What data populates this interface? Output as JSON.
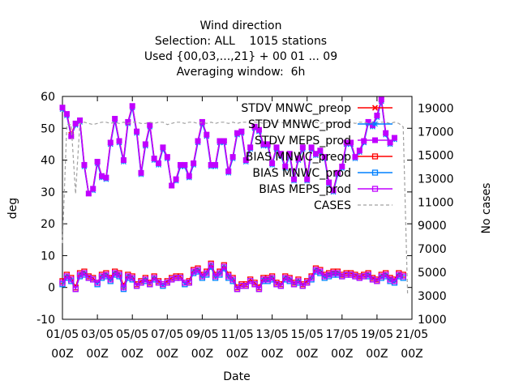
{
  "chart_data": {
    "type": "line",
    "title_lines": [
      "Wind direction",
      "Selection: ALL    1015 stations",
      "Used {00,03,...,21} + 00 01 ... 09",
      "Averaging window:  6h"
    ],
    "xlabel": "Date",
    "ylabel": "deg",
    "y2label": "No cases",
    "xlim": [
      0,
      20
    ],
    "ylim": [
      -10,
      60
    ],
    "y2lim": [
      1000,
      20000
    ],
    "x_ticks": [
      0,
      2,
      4,
      6,
      8,
      10,
      12,
      14,
      16,
      18,
      20
    ],
    "x_tick_labels": [
      [
        "01/05",
        "00Z"
      ],
      [
        "03/05",
        "00Z"
      ],
      [
        "05/05",
        "00Z"
      ],
      [
        "07/05",
        "00Z"
      ],
      [
        "09/05",
        "00Z"
      ],
      [
        "11/05",
        "00Z"
      ],
      [
        "13/05",
        "00Z"
      ],
      [
        "15/05",
        "00Z"
      ],
      [
        "17/05",
        "00Z"
      ],
      [
        "19/05",
        "00Z"
      ],
      [
        "21/05",
        "00Z"
      ]
    ],
    "y_ticks": [
      -10,
      0,
      10,
      20,
      30,
      40,
      50,
      60
    ],
    "y2_ticks": [
      1000,
      3000,
      5000,
      7000,
      9000,
      11000,
      13000,
      15000,
      17000,
      19000
    ],
    "legend_position": "top-right",
    "grid": false,
    "x": [
      0,
      0.25,
      0.5,
      0.75,
      1,
      1.25,
      1.5,
      1.75,
      2,
      2.25,
      2.5,
      2.75,
      3,
      3.25,
      3.5,
      3.75,
      4,
      4.25,
      4.5,
      4.75,
      5,
      5.25,
      5.5,
      5.75,
      6,
      6.25,
      6.5,
      6.75,
      7,
      7.25,
      7.5,
      7.75,
      8,
      8.25,
      8.5,
      8.75,
      9,
      9.25,
      9.5,
      9.75,
      10,
      10.25,
      10.5,
      10.75,
      11,
      11.25,
      11.5,
      11.75,
      12,
      12.25,
      12.5,
      12.75,
      13,
      13.25,
      13.5,
      13.75,
      14,
      14.25,
      14.5,
      14.75,
      15,
      15.25,
      15.5,
      15.75,
      16,
      16.25,
      16.5,
      16.75,
      17,
      17.25,
      17.5,
      17.75,
      18,
      18.25,
      18.5,
      18.75,
      19,
      19.25,
      19.5,
      19.75
    ],
    "series": [
      {
        "name": "STDV MNWC_preop",
        "color": "#ff0000",
        "marker": "x",
        "axis": "y",
        "values": [
          56.5,
          54.5,
          48,
          51.5,
          52.5,
          38.5,
          29.5,
          31,
          39.5,
          35,
          34.5,
          45.5,
          53,
          46,
          40,
          52,
          57,
          49,
          36,
          45,
          51,
          40.5,
          39,
          44,
          41,
          32,
          34,
          38.5,
          38.5,
          35,
          39,
          46,
          52,
          48,
          38.5,
          38.5,
          46,
          46,
          36.5,
          41,
          48.5,
          49,
          40,
          44,
          50.5,
          49.5,
          45,
          45,
          39,
          44,
          42,
          38,
          42,
          34,
          40.5,
          44,
          34,
          44,
          42,
          43,
          41,
          33,
          30.5,
          36,
          38,
          45.5,
          45.5,
          41,
          43,
          46,
          52,
          51,
          54,
          59,
          48.5,
          45.5,
          47,
          null,
          null,
          null
        ]
      },
      {
        "name": "STDV MNWC_prod",
        "color": "#0080ff",
        "marker": "star",
        "axis": "y",
        "values": [
          56,
          54,
          47.5,
          51,
          52,
          38,
          29.5,
          30.5,
          39,
          34.5,
          34,
          45,
          52.5,
          45.5,
          39.5,
          51.5,
          56.5,
          48.5,
          35.5,
          44.5,
          50.5,
          40,
          38.5,
          43.5,
          40.5,
          32,
          33.5,
          38,
          38,
          34.5,
          38.5,
          45.5,
          51.5,
          47.5,
          38,
          38,
          45.5,
          45.5,
          36,
          40.5,
          48,
          48.5,
          39.5,
          43.5,
          50,
          49,
          44.5,
          44.5,
          38.5,
          43.5,
          41.5,
          37.5,
          41.5,
          33.5,
          40,
          43.5,
          33.5,
          43.5,
          41.5,
          42.5,
          40.5,
          32.5,
          30,
          35.5,
          37.5,
          45,
          45,
          40.5,
          42.5,
          45.5,
          51.5,
          50.5,
          53.5,
          58.5,
          48,
          45,
          46.5,
          null,
          null,
          null
        ]
      },
      {
        "name": "STDV MEPS_prod",
        "color": "#c000ff",
        "marker": "square",
        "axis": "y",
        "values": [
          56.5,
          54.5,
          47.5,
          51.5,
          52.5,
          38.5,
          29.5,
          31,
          39.5,
          35,
          34.5,
          45.5,
          53,
          46,
          40,
          52,
          57,
          49,
          36,
          45,
          51,
          40.5,
          39,
          44,
          41,
          32,
          34,
          38.5,
          38.5,
          35,
          39,
          46,
          52,
          48,
          38.5,
          38.5,
          46,
          46,
          36.5,
          41,
          48.5,
          49,
          40,
          44,
          50.5,
          49.5,
          45,
          45,
          39,
          44,
          42,
          38,
          42,
          34,
          40.5,
          44,
          34,
          44,
          42,
          43,
          41,
          33,
          30.5,
          36,
          38,
          45.5,
          45.5,
          41,
          43,
          46,
          52,
          51,
          54,
          59,
          48.5,
          45.5,
          47,
          null,
          null,
          null
        ]
      },
      {
        "name": "BIAS MNWC_preop",
        "color": "#ff0000",
        "marker": "square-open",
        "axis": "y",
        "values": [
          2,
          4,
          3,
          0,
          4.5,
          5,
          3.5,
          3,
          1.5,
          4,
          4.5,
          3,
          5,
          4.5,
          0.5,
          4,
          3.5,
          1,
          2,
          3,
          1.5,
          3.5,
          2,
          1,
          2,
          3,
          3.5,
          3.5,
          1.5,
          2,
          5.5,
          6,
          4,
          5,
          7.5,
          4,
          5,
          7,
          4,
          3,
          0,
          1,
          1,
          2.5,
          1.5,
          0,
          3,
          3,
          3.5,
          1.5,
          1,
          3.5,
          3,
          1.5,
          2.5,
          1,
          2,
          3.5,
          6,
          5.5,
          4,
          4.5,
          5,
          5,
          4,
          4.5,
          4.5,
          4,
          3.5,
          4,
          4.5,
          3,
          2.5,
          4,
          4.5,
          3,
          2.5,
          4.5,
          4,
          null
        ]
      },
      {
        "name": "BIAS MNWC_prod",
        "color": "#0080ff",
        "marker": "square-open",
        "axis": "y",
        "values": [
          1,
          3,
          2,
          -0.5,
          3.5,
          4,
          3,
          2.5,
          1,
          3,
          3.5,
          2,
          4,
          3.5,
          -0.5,
          3,
          2.5,
          0.5,
          1.5,
          2,
          1,
          2.5,
          1.5,
          0.5,
          1.5,
          2.5,
          3,
          3,
          1,
          1.5,
          4.5,
          5,
          3,
          4,
          6.5,
          3,
          4,
          6,
          3,
          2,
          -0.5,
          0.5,
          0.5,
          2,
          1,
          -0.5,
          2,
          2,
          2.5,
          1,
          0.5,
          2.5,
          2,
          1,
          1.5,
          0.5,
          1.5,
          2.5,
          5,
          4.5,
          3,
          3.5,
          4,
          4,
          3.5,
          4,
          4,
          3.5,
          3,
          3.5,
          3.5,
          2.5,
          2,
          3,
          3.5,
          2,
          1.5,
          3.5,
          3,
          null
        ]
      },
      {
        "name": "BIAS MEPS_prod",
        "color": "#c000ff",
        "marker": "square-open",
        "axis": "y",
        "values": [
          1.5,
          3.5,
          2.5,
          -0.5,
          4,
          4.5,
          3,
          2.5,
          1.5,
          3.5,
          4,
          2.5,
          4.5,
          4,
          0,
          3.5,
          3,
          0.5,
          1.5,
          2.5,
          1,
          3,
          1.5,
          1,
          1.5,
          2.5,
          3,
          3,
          1.5,
          1.5,
          5,
          5.5,
          3.5,
          4.5,
          7,
          3.5,
          4.5,
          6.5,
          3.5,
          2.5,
          -0.5,
          0.5,
          0.5,
          2,
          1,
          -0.5,
          2.5,
          2.5,
          3,
          1,
          0.5,
          3,
          2.5,
          1,
          2,
          0.5,
          1.5,
          3,
          5.5,
          5,
          3.5,
          4,
          4.5,
          4.5,
          3.5,
          4,
          4,
          3.5,
          3,
          3.5,
          4,
          2.5,
          2,
          3.5,
          4,
          2.5,
          2,
          4,
          3.5,
          null
        ]
      },
      {
        "name": "CASES",
        "color": "#a0a0a0",
        "marker": "none",
        "dash": true,
        "axis": "y2",
        "values": [
          7500,
          17600,
          17600,
          11700,
          17700,
          17800,
          17700,
          17600,
          17700,
          17800,
          17800,
          17700,
          17800,
          17700,
          17800,
          17700,
          17800,
          17800,
          17700,
          17700,
          17800,
          17700,
          17800,
          17800,
          17600,
          17700,
          17800,
          17800,
          17700,
          17800,
          17800,
          17700,
          17800,
          17700,
          17800,
          17700,
          17800,
          17800,
          17700,
          17800,
          17700,
          17800,
          17800,
          17700,
          17800,
          17800,
          17700,
          17800,
          17700,
          17800,
          17800,
          17700,
          17800,
          17800,
          17700,
          17800,
          17700,
          17800,
          17800,
          17700,
          17800,
          17700,
          17800,
          17800,
          17700,
          17800,
          17800,
          17700,
          17800,
          17800,
          17700,
          17800,
          17700,
          17800,
          17800,
          17700,
          17800,
          17700,
          17400,
          3200
        ]
      }
    ]
  }
}
